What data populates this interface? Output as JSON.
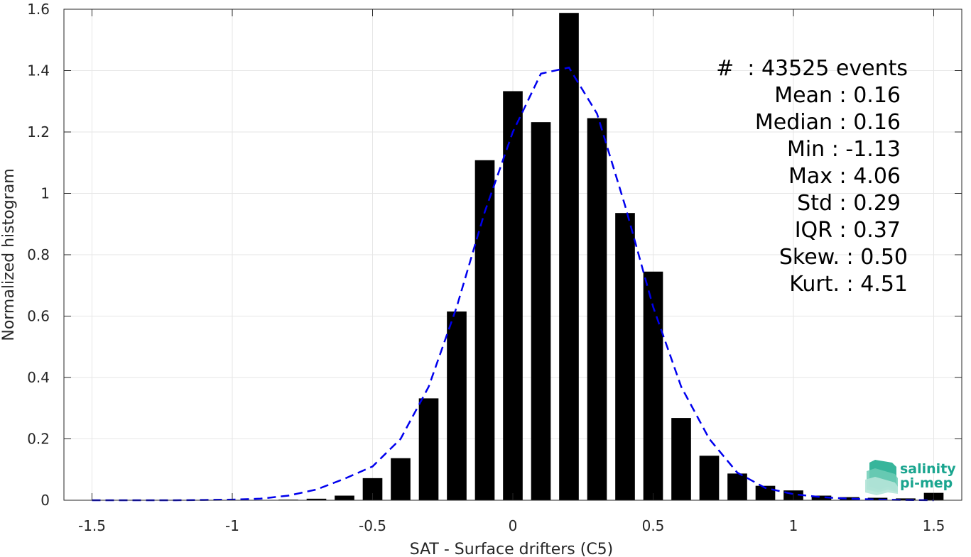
{
  "chart_data": {
    "type": "bar",
    "xlabel": "SAT - Surface drifters (C5)",
    "ylabel": "Normalized histogram",
    "xlim": [
      -1.6,
      1.6
    ],
    "ylim": [
      0,
      1.6
    ],
    "xticks": [
      -1.5,
      -1,
      -0.5,
      0,
      0.5,
      1,
      1.5
    ],
    "xtick_labels": [
      "-1.5",
      "-1",
      "-0.5",
      "0",
      "0.5",
      "1",
      "1.5"
    ],
    "yticks": [
      0,
      0.2,
      0.4,
      0.6,
      0.8,
      1,
      1.2,
      1.4,
      1.6
    ],
    "ytick_labels": [
      "0",
      "0.2",
      "0.4",
      "0.6",
      "0.8",
      "1",
      "1.2",
      "1.4",
      "1.6"
    ],
    "grid": true,
    "series": [
      {
        "type": "bar",
        "color": "#000000",
        "x": [
          -1.5,
          -1.4,
          -1.3,
          -1.2,
          -1.1,
          -1.0,
          -0.9,
          -0.8,
          -0.7,
          -0.6,
          -0.5,
          -0.4,
          -0.3,
          -0.2,
          -0.1,
          0.0,
          0.1,
          0.2,
          0.3,
          0.4,
          0.5,
          0.6,
          0.7,
          0.8,
          0.9,
          1.0,
          1.1,
          1.2,
          1.3,
          1.4,
          1.5
        ],
        "values": [
          0.0,
          0.0,
          0.0,
          0.0,
          0.0005,
          0.001,
          0.001,
          0.002,
          0.005,
          0.015,
          0.072,
          0.137,
          0.332,
          0.615,
          1.108,
          1.333,
          1.232,
          1.588,
          1.245,
          0.936,
          0.745,
          0.268,
          0.145,
          0.087,
          0.047,
          0.032,
          0.015,
          0.01,
          0.008,
          0.006,
          0.024
        ]
      },
      {
        "type": "line",
        "style": "dashed",
        "color": "#0000ee",
        "x": [
          -1.5,
          -1.4,
          -1.3,
          -1.2,
          -1.1,
          -1.0,
          -0.9,
          -0.8,
          -0.7,
          -0.6,
          -0.5,
          -0.4,
          -0.3,
          -0.2,
          -0.1,
          0.0,
          0.1,
          0.2,
          0.3,
          0.4,
          0.5,
          0.6,
          0.7,
          0.8,
          0.9,
          1.0,
          1.1,
          1.2,
          1.3,
          1.4,
          1.5
        ],
        "values": [
          0.0,
          0.0,
          0.0,
          0.0,
          0.001,
          0.002,
          0.005,
          0.015,
          0.035,
          0.07,
          0.11,
          0.2,
          0.37,
          0.63,
          0.94,
          1.2,
          1.39,
          1.41,
          1.26,
          0.96,
          0.63,
          0.37,
          0.2,
          0.09,
          0.04,
          0.02,
          0.01,
          0.005,
          0.002,
          0.001,
          0.0
        ]
      }
    ]
  },
  "stats": {
    "lines": [
      "#  : 43525 events",
      "Mean : 0.16",
      "Median : 0.16",
      "Min : -1.13",
      "Max : 4.06",
      "Std : 0.29",
      "IQR : 0.37",
      "Skew. : 0.50",
      "Kurt. : 4.51"
    ]
  },
  "logo": {
    "line1": "salinity",
    "line2": "pi-mep"
  }
}
